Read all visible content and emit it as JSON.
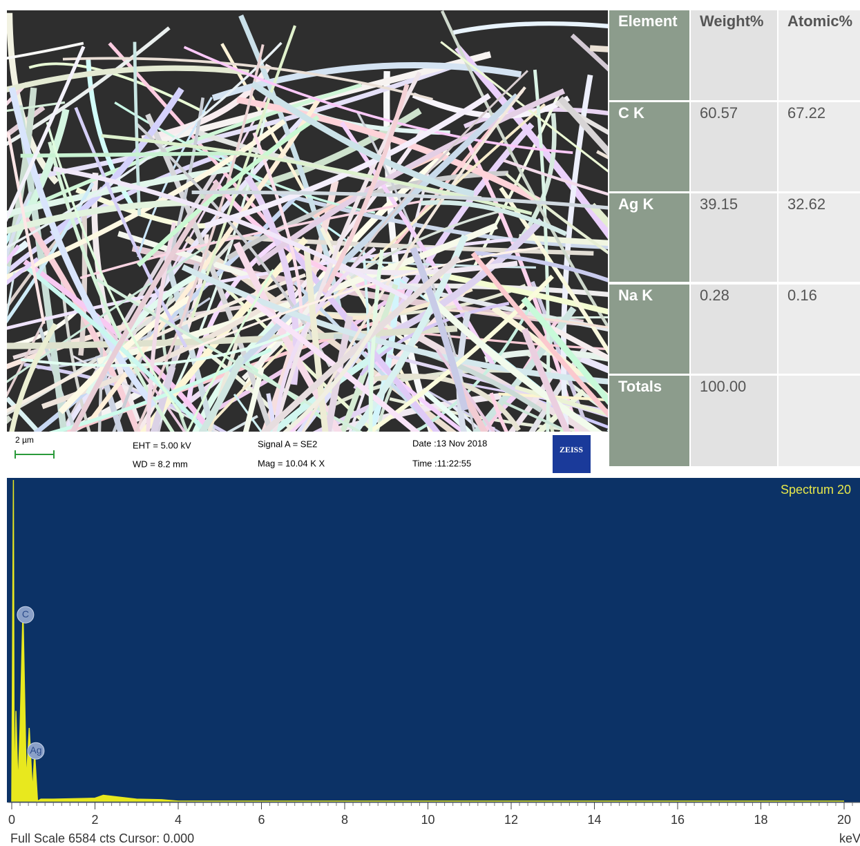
{
  "sem": {
    "scale": "2 µm",
    "eht": "EHT = 5.00 kV",
    "wd": "WD = 8.2 mm",
    "signal": "Signal A = SE2",
    "mag": "Mag = 10.04 K X",
    "date": "Date :13 Nov 2018",
    "time": "Time :11:22:55",
    "logo": "ZEISS"
  },
  "table": {
    "header": [
      "Element",
      "Weight%",
      "Atomic%"
    ],
    "rows": [
      [
        "C K",
        "60.57",
        "67.22"
      ],
      [
        "Ag K",
        "39.15",
        "32.62"
      ],
      [
        "Na K",
        "0.28",
        "0.16"
      ],
      [
        "Totals",
        "100.00",
        null
      ]
    ]
  },
  "spectrum": {
    "title": "Spectrum 20",
    "x_unit": "keV",
    "status": "Full Scale 6584 cts Cursor: 0.000",
    "xlim": [
      0,
      20.4
    ],
    "ylim": [
      0,
      6584
    ],
    "xticks": [
      0,
      2,
      4,
      6,
      8,
      10,
      12,
      14,
      16,
      18,
      20
    ],
    "x": [
      0,
      0.04,
      0.06,
      0.1,
      0.15,
      0.2,
      0.27,
      0.35,
      0.42,
      0.5,
      0.55,
      0.62,
      0.7,
      1,
      2,
      2.2,
      3,
      3.6,
      4,
      20
    ],
    "y": [
      0,
      6584,
      0,
      1850,
      300,
      1500,
      3950,
      400,
      1500,
      200,
      1000,
      0,
      40,
      40,
      60,
      120,
      40,
      30,
      0,
      0
    ],
    "peaks": [
      {
        "label": "C",
        "x": 0.33,
        "y": 3820
      },
      {
        "label": "Ag",
        "x": 0.58,
        "y": 1030
      }
    ]
  }
}
